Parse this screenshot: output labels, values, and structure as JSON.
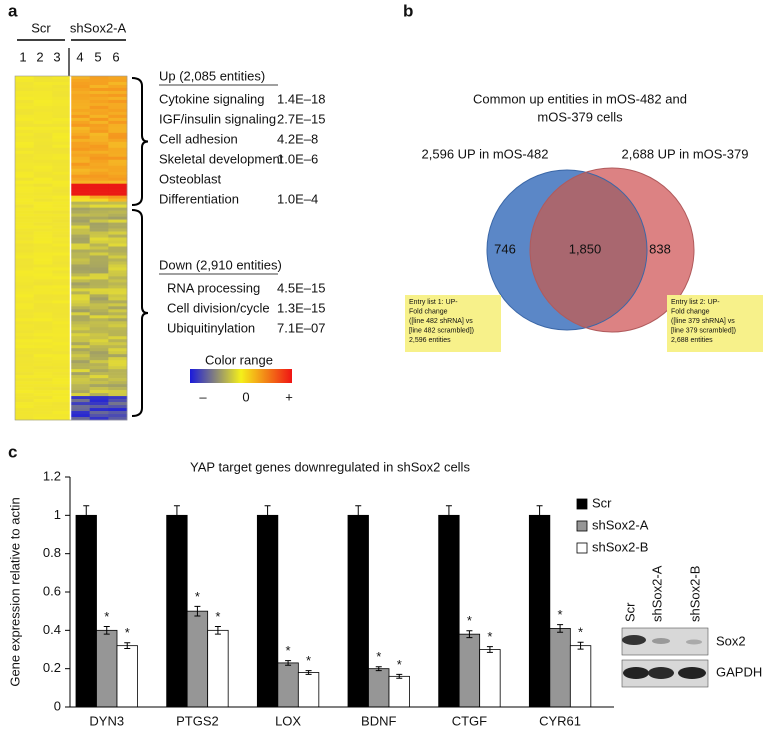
{
  "panel_a": {
    "letter": "a",
    "groups": [
      "Scr",
      "shSox2-A"
    ],
    "columns": [
      "1",
      "2",
      "3",
      "4",
      "5",
      "6"
    ],
    "up": {
      "heading": "Up (2,085 entities)",
      "terms": [
        {
          "lines": [
            "Cytokine signaling"
          ],
          "p": "1.4E–18"
        },
        {
          "lines": [
            "IGF/insulin signaling"
          ],
          "p": "2.7E–15"
        },
        {
          "lines": [
            "Cell adhesion"
          ],
          "p": "4.2E–8"
        },
        {
          "lines": [
            "Skeletal development"
          ],
          "p": "1.0E–6"
        },
        {
          "lines": [
            "Osteoblast",
            "Differentiation"
          ],
          "p": "1.0E–4"
        }
      ]
    },
    "down": {
      "heading": "Down (2,910 entities)",
      "terms": [
        {
          "lines": [
            "RNA processing"
          ],
          "p": "4.5E–15"
        },
        {
          "lines": [
            "Cell division/cycle"
          ],
          "p": "1.3E–15"
        },
        {
          "lines": [
            "Ubiquitinylation"
          ],
          "p": "7.1E–07"
        }
      ]
    },
    "color_range": {
      "title": "Color range",
      "labels": [
        "–",
        "0",
        "+"
      ]
    }
  },
  "panel_b": {
    "letter": "b",
    "title_lines": [
      "Common up entities in mOS-482 and",
      "mOS-379 cells"
    ],
    "left_label": "2,596 UP in mOS-482",
    "right_label": "2,688 UP in mOS-379",
    "left_only": "746",
    "common": "1,850",
    "right_only": "838",
    "note_left": [
      "Entry list 1: UP-",
      "Fold change",
      "([line 482 shRNA] vs",
      "[line 482 scrambled])",
      "2,596 entities"
    ],
    "note_right": [
      "Entry list 2: UP-",
      "Fold change",
      "([line 379 shRNA] vs",
      "[line 379 scrambled])",
      "2,688 entities"
    ]
  },
  "panel_c": {
    "letter": "c",
    "blot_lanes": [
      "Scr",
      "shSox2-A",
      "shSox2-B"
    ],
    "blot_rows": [
      "Sox2",
      "GAPDH"
    ]
  },
  "chart_data": {
    "type": "bar",
    "title": "YAP target genes downregulated in shSox2 cells",
    "y_label": "Gene expression relative to actin",
    "categories": [
      "DYN3",
      "PTGS2",
      "LOX",
      "BDNF",
      "CTGF",
      "CYR61"
    ],
    "series": [
      {
        "name": "Scr",
        "color": "#000000",
        "values": [
          1,
          1,
          1,
          1,
          1,
          1
        ],
        "errors": [
          0.05,
          0.05,
          0.05,
          0.05,
          0.05,
          0.05
        ]
      },
      {
        "name": "shSox2-A",
        "color": "#969696",
        "values": [
          0.4,
          0.5,
          0.23,
          0.2,
          0.38,
          0.41
        ],
        "errors": [
          0.02,
          0.025,
          0.012,
          0.01,
          0.018,
          0.02
        ],
        "significance": [
          "*",
          "*",
          "*",
          "*",
          "*",
          "*"
        ]
      },
      {
        "name": "shSox2-B",
        "color": "#ffffff",
        "values": [
          0.32,
          0.4,
          0.18,
          0.16,
          0.3,
          0.32
        ],
        "errors": [
          0.015,
          0.02,
          0.01,
          0.01,
          0.015,
          0.018
        ],
        "significance": [
          "*",
          "*",
          "*",
          "*",
          "*",
          "*"
        ]
      }
    ],
    "ylim": [
      0,
      1.2
    ],
    "yticks": [
      0,
      0.2,
      0.4,
      0.6,
      0.8,
      1,
      1.2
    ],
    "legend": "upper right"
  }
}
